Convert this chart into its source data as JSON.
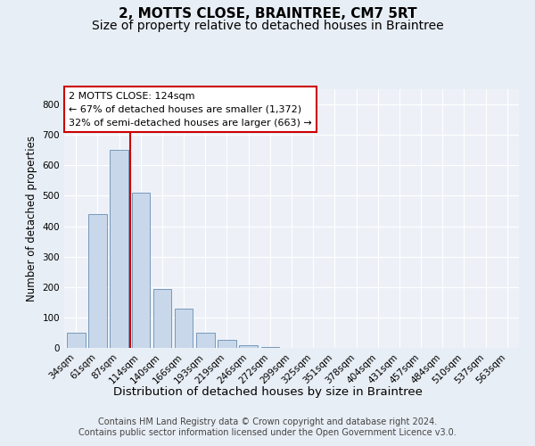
{
  "title": "2, MOTTS CLOSE, BRAINTREE, CM7 5RT",
  "subtitle": "Size of property relative to detached houses in Braintree",
  "xlabel": "Distribution of detached houses by size in Braintree",
  "ylabel": "Number of detached properties",
  "categories": [
    "34sqm",
    "61sqm",
    "87sqm",
    "114sqm",
    "140sqm",
    "166sqm",
    "193sqm",
    "219sqm",
    "246sqm",
    "272sqm",
    "299sqm",
    "325sqm",
    "351sqm",
    "378sqm",
    "404sqm",
    "431sqm",
    "457sqm",
    "484sqm",
    "510sqm",
    "537sqm",
    "563sqm"
  ],
  "values": [
    50,
    440,
    650,
    510,
    193,
    128,
    50,
    25,
    9,
    2,
    1,
    1,
    0,
    0,
    0,
    0,
    0,
    0,
    0,
    0,
    0
  ],
  "bar_color": "#c8d8ea",
  "bar_edge_color": "#7799bb",
  "vline_x": 2.5,
  "vline_color": "#cc0000",
  "annotation_text": "2 MOTTS CLOSE: 124sqm\n← 67% of detached houses are smaller (1,372)\n32% of semi-detached houses are larger (663) →",
  "annotation_box_color": "#ffffff",
  "annotation_box_edge_color": "#cc0000",
  "ylim": [
    0,
    850
  ],
  "yticks": [
    0,
    100,
    200,
    300,
    400,
    500,
    600,
    700,
    800
  ],
  "bg_color": "#e8eef5",
  "plot_bg_color": "#edf1f7",
  "grid_color": "#ffffff",
  "footer": "Contains HM Land Registry data © Crown copyright and database right 2024.\nContains public sector information licensed under the Open Government Licence v3.0.",
  "title_fontsize": 11,
  "subtitle_fontsize": 10,
  "xlabel_fontsize": 9.5,
  "ylabel_fontsize": 8.5,
  "tick_fontsize": 7.5,
  "annotation_fontsize": 8,
  "footer_fontsize": 7
}
